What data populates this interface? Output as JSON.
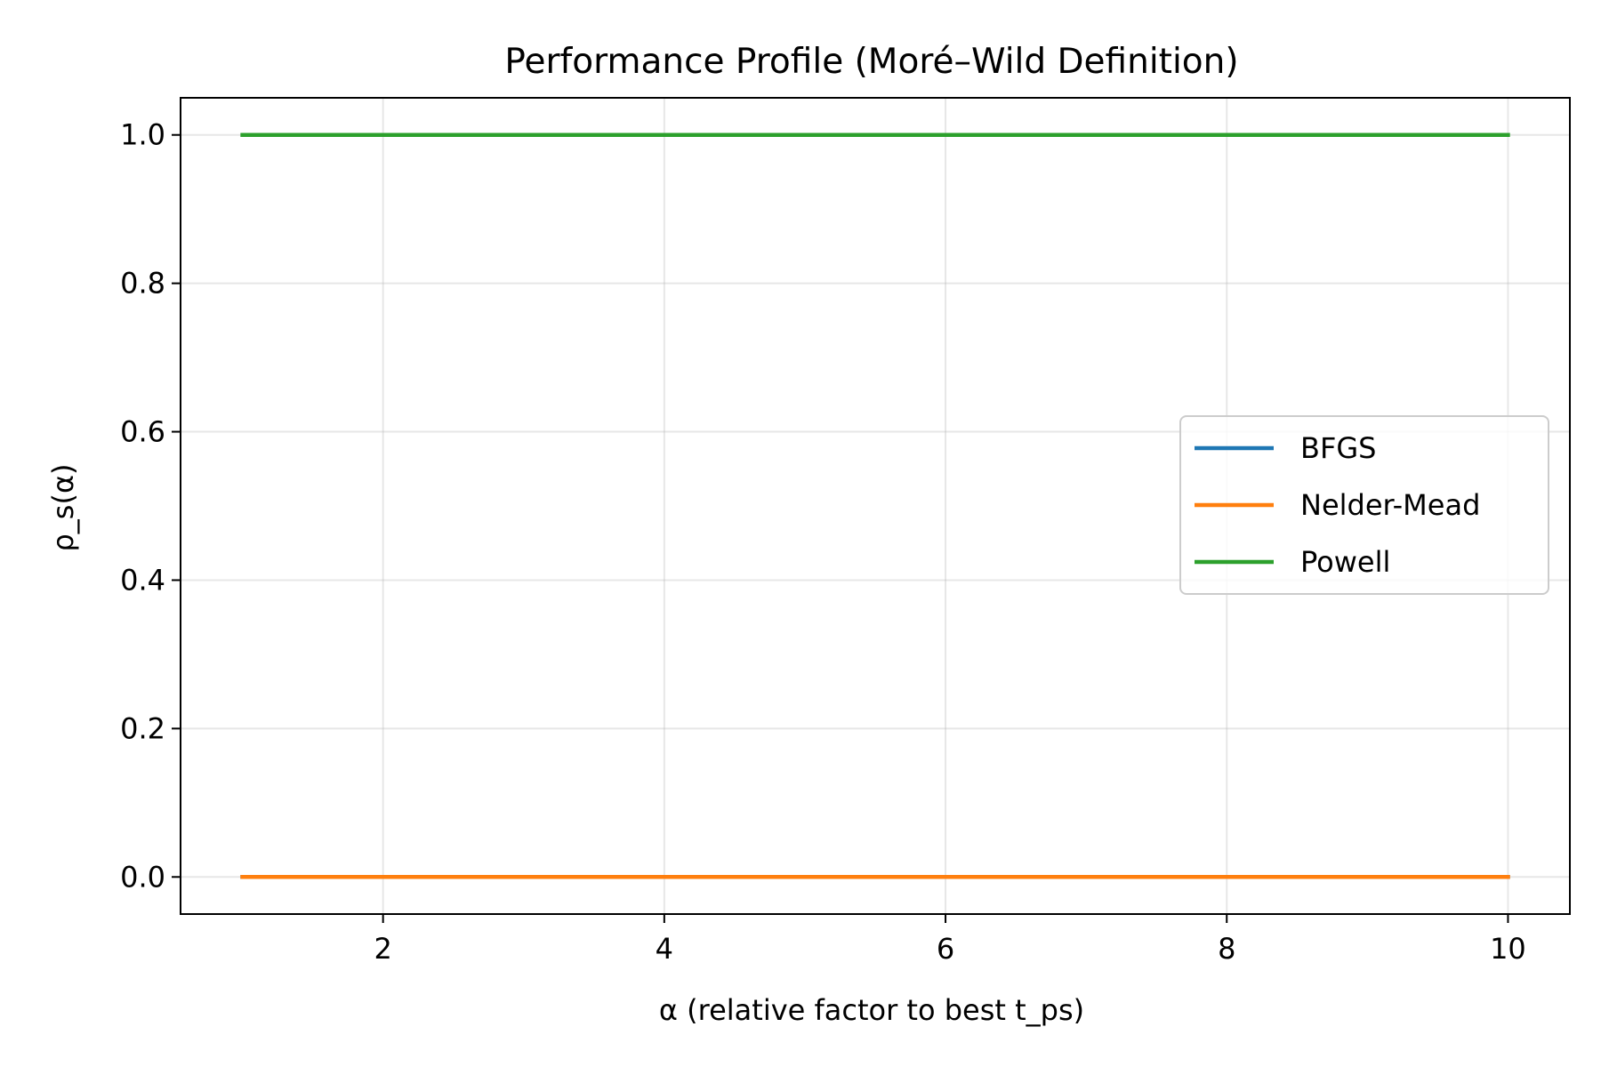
{
  "chart_data": {
    "type": "line",
    "title": "Performance Profile (Moré–Wild Definition)",
    "xlabel": "α (relative factor to best t_ps)",
    "ylabel": "ρ_s(α)",
    "xlim": [
      0.56,
      10.44
    ],
    "ylim": [
      -0.05,
      1.05
    ],
    "xticks": [
      2,
      4,
      6,
      8,
      10
    ],
    "yticks": [
      0.0,
      0.2,
      0.4,
      0.6,
      0.8,
      1.0
    ],
    "xtick_labels": [
      "2",
      "4",
      "6",
      "8",
      "10"
    ],
    "ytick_labels": [
      "0.0",
      "0.2",
      "0.4",
      "0.6",
      "0.8",
      "1.0"
    ],
    "grid": true,
    "legend_position": "center-right",
    "series": [
      {
        "name": "BFGS",
        "color": "#1f77b4",
        "x": [
          1,
          10
        ],
        "y": [
          0,
          0
        ]
      },
      {
        "name": "Nelder-Mead",
        "color": "#ff7f0e",
        "x": [
          1,
          10
        ],
        "y": [
          0,
          0
        ]
      },
      {
        "name": "Powell",
        "color": "#2ca02c",
        "x": [
          1,
          10
        ],
        "y": [
          1,
          1
        ]
      }
    ]
  }
}
